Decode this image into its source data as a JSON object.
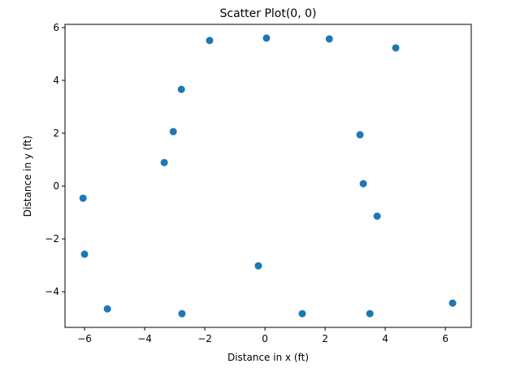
{
  "chart_data": {
    "type": "scatter",
    "title": "Scatter Plot(0, 0)",
    "x_label": "Distance in x (ft)",
    "y_label": "Distance in y (ft)",
    "color": "#1f77b4",
    "x": [
      -1.84,
      0.05,
      2.14,
      4.35,
      -2.78,
      -3.05,
      -3.35,
      3.16,
      3.27,
      3.73,
      -6.05,
      -6.0,
      -0.22,
      -5.24,
      -2.76,
      1.24,
      3.49,
      6.24
    ],
    "values": [
      5.51,
      5.6,
      5.57,
      5.23,
      3.66,
      2.06,
      0.89,
      1.94,
      0.09,
      -1.14,
      -0.46,
      -2.58,
      -3.02,
      -4.65,
      -4.83,
      -4.83,
      -4.83,
      -4.43
    ],
    "xlim": [
      -6.65,
      6.86
    ],
    "ylim": [
      -5.35,
      6.12
    ],
    "xticks": [
      {
        "value": -6,
        "label": "−6"
      },
      {
        "value": -4,
        "label": "−4"
      },
      {
        "value": -2,
        "label": "−2"
      },
      0,
      2,
      4,
      6
    ],
    "yticks": [
      {
        "value": -4,
        "label": "−4"
      },
      {
        "value": -2,
        "label": "−2"
      },
      0,
      2,
      4,
      6
    ]
  }
}
